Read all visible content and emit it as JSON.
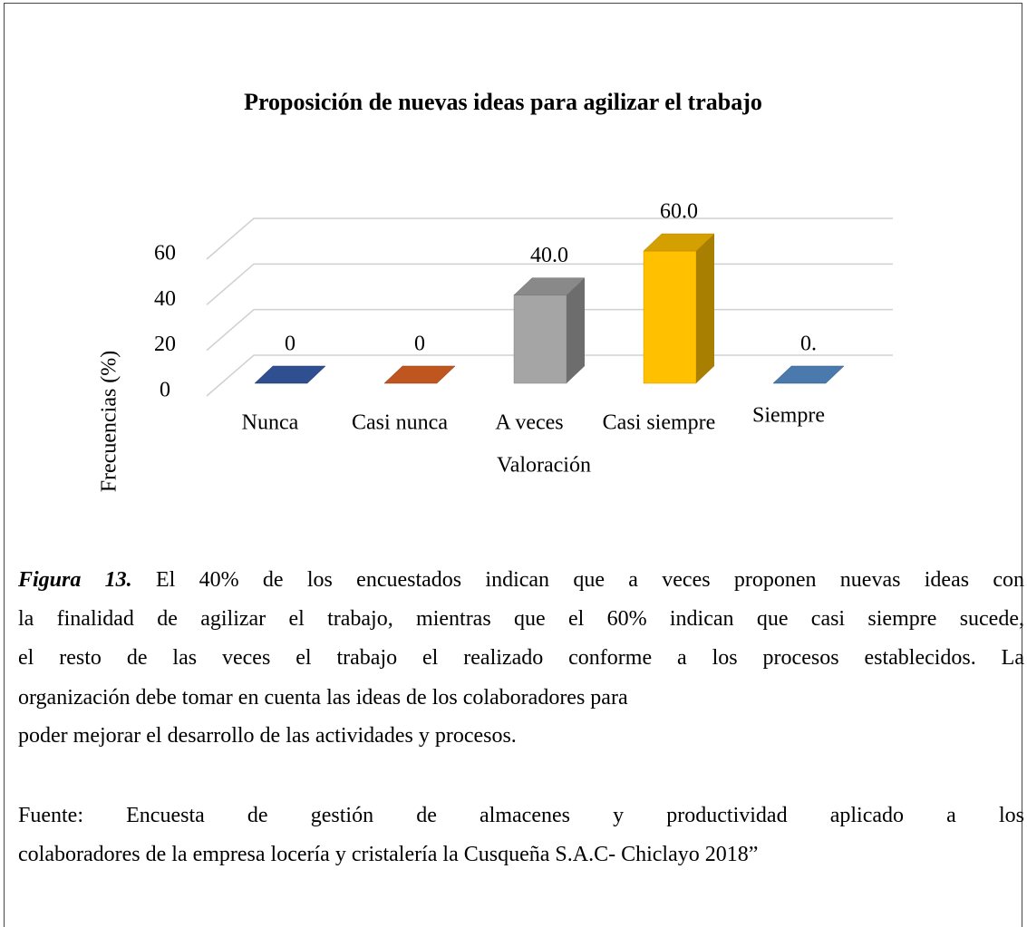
{
  "chart_data": {
    "type": "bar3d",
    "title": "Proposición de nuevas ideas para agilizar el trabajo",
    "x_label": "Valoración",
    "y_label": "Frecuencias (%)",
    "categories": [
      "Nunca",
      "Casi nunca",
      "A veces",
      "Casi siempre",
      "Siempre"
    ],
    "values": [
      0,
      0,
      40,
      60,
      0
    ],
    "value_labels": [
      "0",
      "0",
      "40.0",
      "60.0",
      "0."
    ],
    "colors": [
      "#2f4f91",
      "#c0561f",
      "#a5a5a5",
      "#ffc000",
      "#4a7aad"
    ],
    "ylim": [
      0,
      60
    ],
    "yticks": [
      0,
      20,
      40,
      60
    ],
    "grid": true
  },
  "caption": {
    "label": "Figura 13.",
    "lines": [
      "El 40% de los encuestados indican que a veces proponen nuevas ideas con",
      "la finalidad de agilizar el trabajo, mientras que el 60% indican que casi siempre sucede,",
      "el resto de las veces el trabajo el realizado conforme a los procesos establecidos. La",
      "organización debe tomar en cuenta las ideas de los colaboradores para",
      "poder mejorar el desarrollo de las actividades y procesos."
    ]
  },
  "source": {
    "lines": [
      "Fuente: Encuesta de gestión de almacenes y productividad aplicado a los",
      "colaboradores de la empresa locería y cristalería la Cusqueña S.A.C- Chiclayo 2018”"
    ]
  }
}
